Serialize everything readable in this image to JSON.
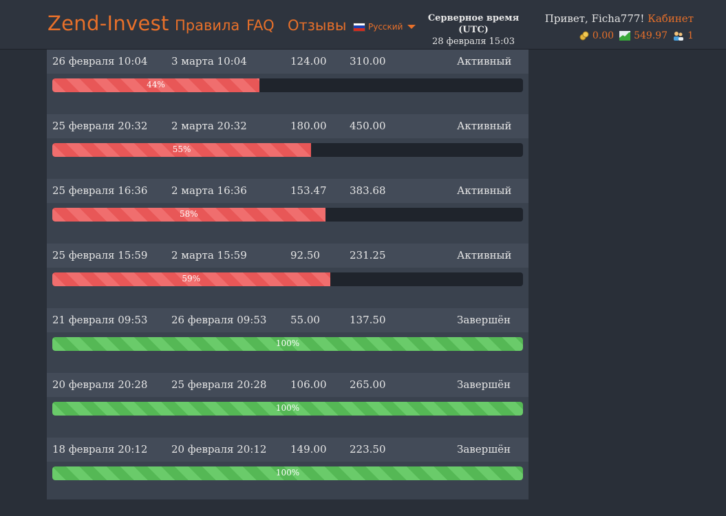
{
  "header": {
    "logo": "Zend-Invest",
    "nav": [
      {
        "label": "Правила"
      },
      {
        "label": "FAQ"
      },
      {
        "label": "Отзывы"
      }
    ],
    "language": "Русский",
    "server_time_title": "Серверное время (UTC)",
    "server_time": "28 февраля 15:03",
    "greeting": "Привет, Ficha777!",
    "cabinet_link": "Кабинет",
    "balance": "0.00",
    "earned": "549.97",
    "referrals": "1"
  },
  "colors": {
    "accent": "#e8702a",
    "active_bar": "#f06e6e",
    "done_bar": "#6acb6a",
    "track": "#1f242c"
  },
  "deposits": [
    {
      "start": "26 февраля 10:04",
      "end": "3 марта 10:04",
      "amount": "124.00",
      "profit": "310.00",
      "status": "Активный",
      "progress": 0.44,
      "progress_label": "44%",
      "state": "active"
    },
    {
      "start": "25 февраля 20:32",
      "end": "2 марта 20:32",
      "amount": "180.00",
      "profit": "450.00",
      "status": "Активный",
      "progress": 0.55,
      "progress_label": "55%",
      "state": "active"
    },
    {
      "start": "25 февраля 16:36",
      "end": "2 марта 16:36",
      "amount": "153.47",
      "profit": "383.68",
      "status": "Активный",
      "progress": 0.58,
      "progress_label": "58%",
      "state": "active"
    },
    {
      "start": "25 февраля 15:59",
      "end": "2 марта 15:59",
      "amount": "92.50",
      "profit": "231.25",
      "status": "Активный",
      "progress": 0.59,
      "progress_label": "59%",
      "state": "active"
    },
    {
      "start": "21 февраля 09:53",
      "end": "26 февраля 09:53",
      "amount": "55.00",
      "profit": "137.50",
      "status": "Завершён",
      "progress": 1.0,
      "progress_label": "100%",
      "state": "done"
    },
    {
      "start": "20 февраля 20:28",
      "end": "25 февраля 20:28",
      "amount": "106.00",
      "profit": "265.00",
      "status": "Завершён",
      "progress": 1.0,
      "progress_label": "100%",
      "state": "done"
    },
    {
      "start": "18 февраля 20:12",
      "end": "20 февраля 20:12",
      "amount": "149.00",
      "profit": "223.50",
      "status": "Завершён",
      "progress": 1.0,
      "progress_label": "100%",
      "state": "done"
    }
  ]
}
